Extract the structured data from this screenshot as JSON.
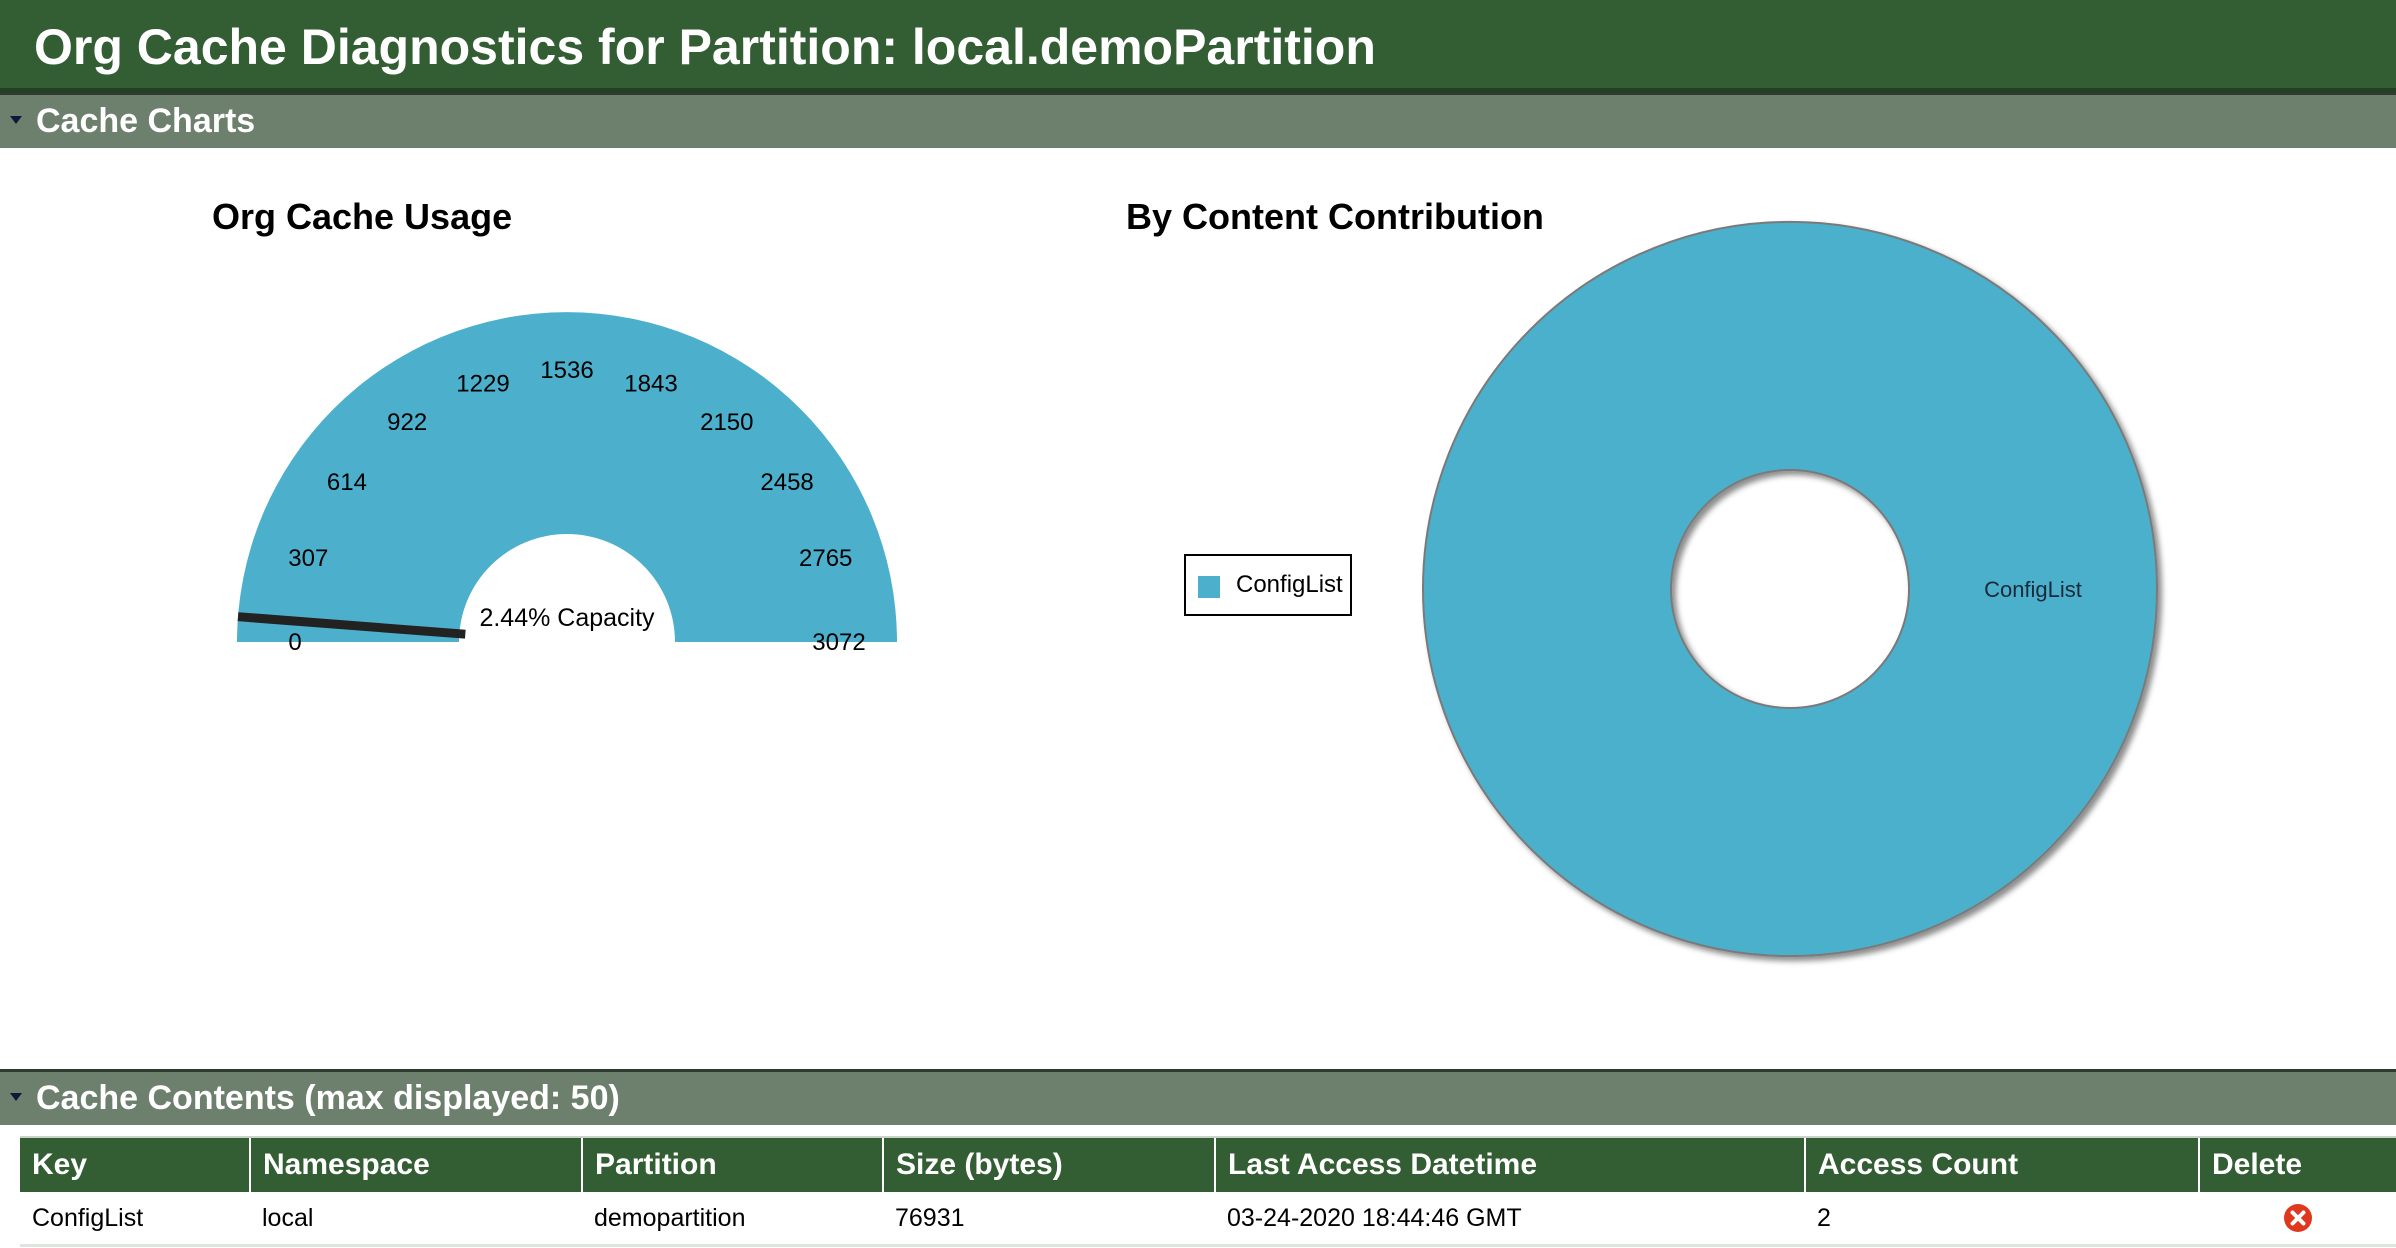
{
  "header": {
    "title": "Org Cache Diagnostics for Partition: local.demoPartition"
  },
  "sections": {
    "charts": {
      "title": "Cache Charts"
    },
    "contents": {
      "title": "Cache Contents (max displayed: 50)"
    }
  },
  "colors": {
    "header_bg": "#335e33",
    "section_bg": "#6d806d",
    "chart_fill": "#4cb0cc",
    "delete_red": "#e0381f"
  },
  "chart_data": [
    {
      "type": "gauge",
      "title": "Org Cache Usage",
      "min": 0,
      "max": 3072,
      "ticks": [
        0,
        307,
        614,
        922,
        1229,
        1536,
        1843,
        2150,
        2458,
        2765,
        3072
      ],
      "value": 75,
      "center_label": "2.44% Capacity"
    },
    {
      "type": "pie",
      "title": "By Content Contribution",
      "donut": true,
      "legend": "left",
      "slices": [
        {
          "label": "ConfigList",
          "value": 76931
        }
      ]
    }
  ],
  "table": {
    "columns": [
      "Key",
      "Namespace",
      "Partition",
      "Size (bytes)",
      "Last Access Datetime",
      "Access Count",
      "Delete"
    ],
    "rows": [
      {
        "key": "ConfigList",
        "namespace": "local",
        "partition": "demopartition",
        "size": "76931",
        "last_access": "03-24-2020 18:44:46 GMT",
        "access_count": "2",
        "delete_icon": "close-circle-icon"
      }
    ]
  }
}
